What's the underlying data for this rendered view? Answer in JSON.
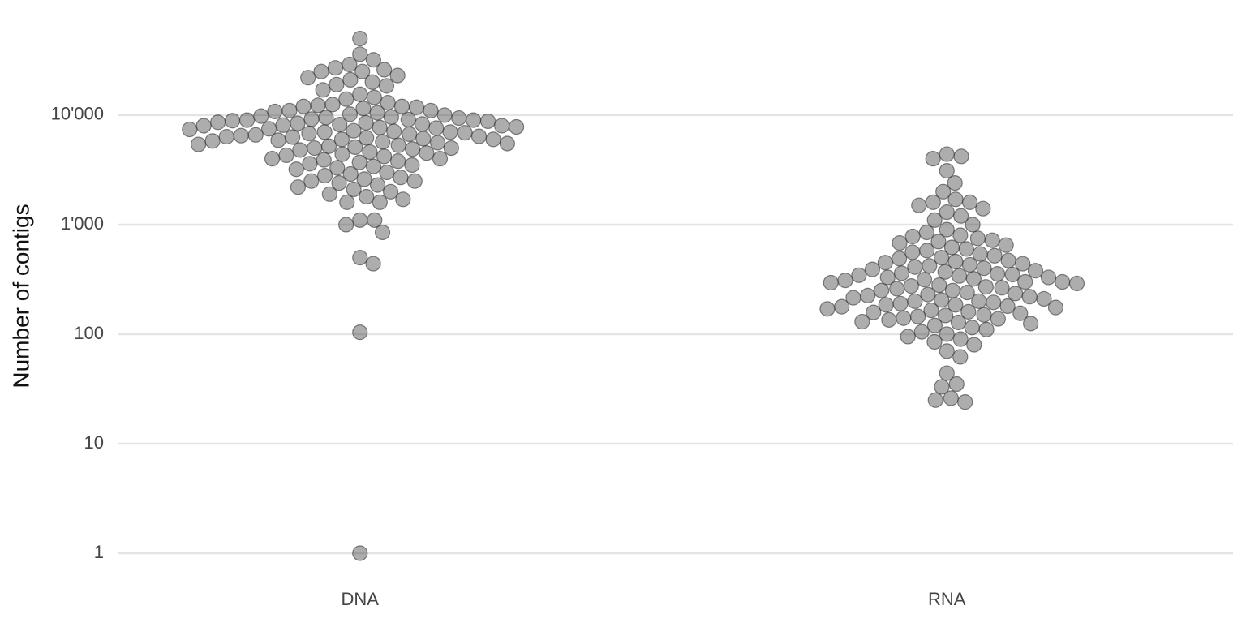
{
  "chart_data": {
    "type": "beeswarm",
    "y_label": "Number of contigs",
    "categories": [
      "DNA",
      "RNA"
    ],
    "values": [
      [
        50000,
        36000,
        32000,
        29000,
        27000,
        26000,
        25000,
        25000,
        23000,
        22000,
        21000,
        20000,
        19000,
        18500,
        17000,
        15500,
        14500,
        14000,
        13000,
        12500,
        12000,
        12000,
        11500,
        11000,
        11000,
        10800,
        10500,
        10200,
        10000,
        9800,
        9600,
        9400,
        9200,
        9000,
        9000,
        8800,
        8600,
        8500,
        8400,
        8200,
        8000,
        8000,
        7800,
        7600,
        7500,
        7400,
        7200,
        7000,
        7000,
        6800,
        6600,
        6500,
        6400,
        6300,
        6200,
        6000,
        6000,
        5800,
        5600,
        5500,
        5400,
        5200,
        5000,
        5000,
        4800,
        4600,
        4500,
        4400,
        4200,
        4000,
        4000,
        3800,
        3700,
        3600,
        3500,
        3400,
        3300,
        3200,
        3000,
        2900,
        2800,
        2700,
        2600,
        2500,
        2500,
        2400,
        2300,
        2200,
        2100,
        2000,
        1900,
        1800,
        1700,
        1600,
        1600,
        1100,
        1100,
        1000,
        850,
        500,
        440,
        104,
        1,
        9500,
        8900,
        8100,
        7700,
        7100,
        6700,
        6100,
        5700,
        5300,
        4900,
        4300,
        3900,
        12300,
        11800,
        9100,
        8300,
        6900,
        6350,
        5900,
        5100
      ],
      [
        4400,
        4200,
        4000,
        3100,
        2400,
        2000,
        1700,
        1600,
        1600,
        1500,
        1400,
        1300,
        1200,
        1100,
        1000,
        900,
        850,
        800,
        780,
        750,
        720,
        700,
        680,
        650,
        620,
        600,
        580,
        560,
        540,
        520,
        500,
        490,
        470,
        450,
        440,
        420,
        400,
        390,
        380,
        370,
        360,
        350,
        340,
        330,
        320,
        310,
        300,
        300,
        290,
        280,
        270,
        260,
        250,
        250,
        240,
        230,
        220,
        210,
        200,
        200,
        195,
        190,
        185,
        180,
        175,
        170,
        165,
        160,
        155,
        150,
        145,
        140,
        135,
        130,
        125,
        120,
        115,
        110,
        105,
        100,
        95,
        90,
        85,
        80,
        70,
        62,
        44,
        35,
        33,
        26,
        25,
        24,
        460,
        410,
        355,
        315,
        275,
        235,
        205,
        185,
        158,
        138,
        430,
        330,
        265,
        215,
        178,
        148,
        128,
        345,
        295,
        225
      ]
    ],
    "color": "#333333",
    "log_y": true,
    "ylim": [
      0.62,
      80000
    ],
    "yticks": [
      1,
      10,
      100,
      {
        "value": 1000,
        "label": "1'000"
      },
      {
        "value": 10000,
        "label": "10'000"
      }
    ],
    "grid": true
  }
}
